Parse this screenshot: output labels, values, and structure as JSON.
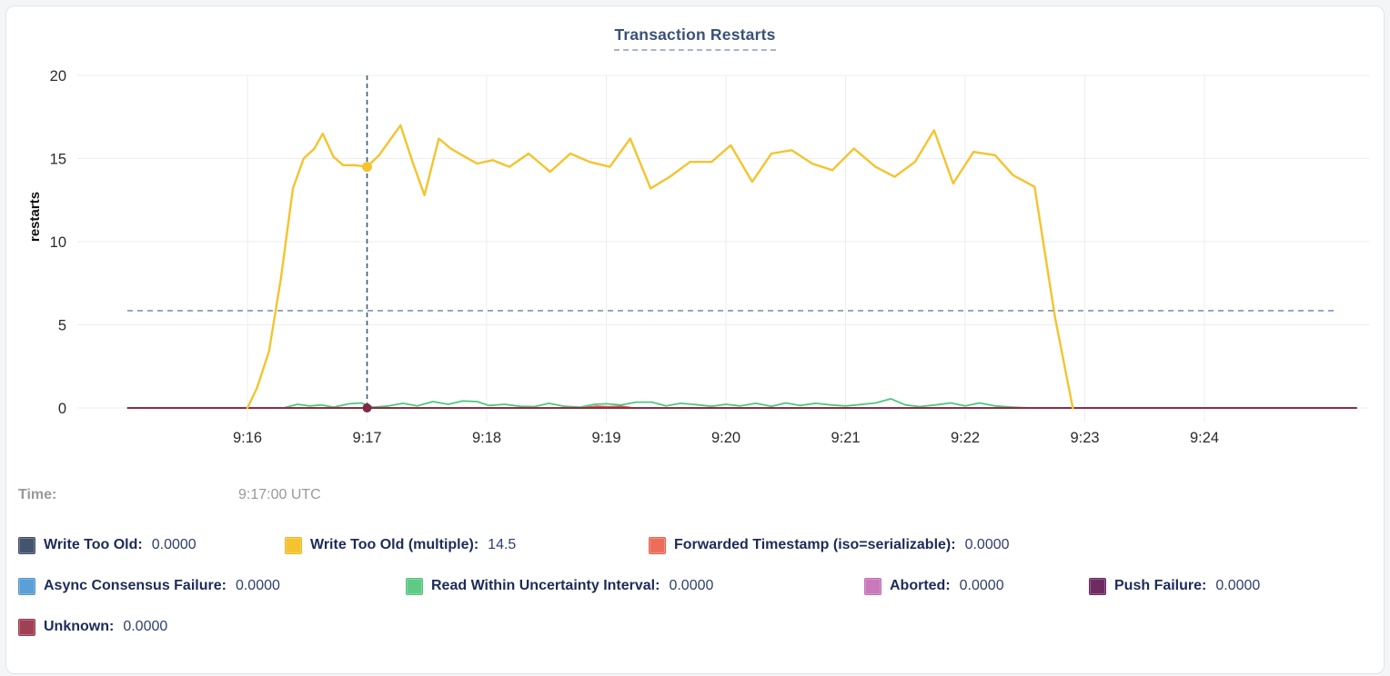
{
  "title": "Transaction Restarts",
  "y_axis_label": "restarts",
  "time_row": {
    "label": "Time:",
    "value": "9:17:00 UTC"
  },
  "legend": [
    {
      "label": "Write Too Old:",
      "value": "0.0000",
      "color": "#44546e"
    },
    {
      "label": "Write Too Old (multiple):",
      "value": "14.5",
      "color": "#f5c32e"
    },
    {
      "label": "Forwarded Timestamp (iso=serializable):",
      "value": "0.0000",
      "color": "#ec6e5a"
    },
    {
      "label": "Async Consensus Failure:",
      "value": "0.0000",
      "color": "#5a9fd6"
    },
    {
      "label": "Read Within Uncertainty Interval:",
      "value": "0.0000",
      "color": "#5ecb84"
    },
    {
      "label": "Aborted:",
      "value": "0.0000",
      "color": "#ca77bb"
    },
    {
      "label": "Push Failure:",
      "value": "0.0000",
      "color": "#6e2b62"
    },
    {
      "label": "Unknown:",
      "value": "0.0000",
      "color": "#a04055"
    }
  ],
  "chart_data": {
    "type": "line",
    "title": "Transaction Restarts",
    "xlabel": "",
    "ylabel": "restarts",
    "ylim": [
      0,
      20
    ],
    "y_ticks": [
      0,
      5,
      10,
      15,
      20
    ],
    "x_tick_labels": [
      "9:16",
      "9:17",
      "9:18",
      "9:19",
      "9:20",
      "9:21",
      "9:22",
      "9:23",
      "9:24"
    ],
    "x_tick_minutes": [
      16,
      17,
      18,
      19,
      20,
      21,
      22,
      23,
      24
    ],
    "x_domain_minutes": [
      15.0,
      25.27
    ],
    "grid": true,
    "legend_position": "bottom",
    "hover": {
      "time_label": "9:17:00 UTC",
      "time_minute": 17,
      "highlight_series": "Write Too Old (multiple)",
      "highlight_value": 14.5,
      "baseline_dot_value": 0,
      "hline_value": 5.85,
      "vline_color": "#3c5a76",
      "hline_color": "#7d95ae",
      "dot_color_top": "#f5c32e",
      "dot_color_bottom": "#7d2b44"
    },
    "series": [
      {
        "name": "Write Too Old",
        "color": "#44546e",
        "width": 1.5,
        "points": [
          [
            15.0,
            0
          ],
          [
            25.27,
            0
          ]
        ]
      },
      {
        "name": "Forwarded Timestamp (iso=serializable)",
        "color": "#e2574d",
        "width": 2,
        "points": [
          [
            16.0,
            0
          ],
          [
            18.8,
            0
          ],
          [
            18.92,
            0.1
          ],
          [
            19.02,
            0.06
          ],
          [
            19.12,
            0.1
          ],
          [
            19.22,
            0
          ],
          [
            22.9,
            0
          ]
        ]
      },
      {
        "name": "Async Consensus Failure",
        "color": "#5a9fd6",
        "width": 1.5,
        "points": [
          [
            15.0,
            0
          ],
          [
            25.27,
            0
          ]
        ]
      },
      {
        "name": "Aborted",
        "color": "#ca77bb",
        "width": 1.5,
        "points": [
          [
            15.0,
            0
          ],
          [
            25.27,
            0
          ]
        ]
      },
      {
        "name": "Push Failure",
        "color": "#6e2b62",
        "width": 1.5,
        "points": [
          [
            15.0,
            0
          ],
          [
            25.27,
            0
          ]
        ]
      },
      {
        "name": "Read Within Uncertainty Interval",
        "color": "#4fc87f",
        "width": 1.8,
        "points": [
          [
            16.3,
            0
          ],
          [
            16.42,
            0.22
          ],
          [
            16.52,
            0.12
          ],
          [
            16.62,
            0.18
          ],
          [
            16.72,
            0.05
          ],
          [
            16.85,
            0.25
          ],
          [
            16.95,
            0.3
          ],
          [
            17.05,
            0.05
          ],
          [
            17.18,
            0.12
          ],
          [
            17.3,
            0.28
          ],
          [
            17.42,
            0.12
          ],
          [
            17.55,
            0.38
          ],
          [
            17.68,
            0.22
          ],
          [
            17.8,
            0.42
          ],
          [
            17.92,
            0.38
          ],
          [
            18.02,
            0.15
          ],
          [
            18.15,
            0.22
          ],
          [
            18.28,
            0.1
          ],
          [
            18.4,
            0.08
          ],
          [
            18.52,
            0.28
          ],
          [
            18.65,
            0.1
          ],
          [
            18.78,
            0.05
          ],
          [
            18.9,
            0.22
          ],
          [
            19.0,
            0.25
          ],
          [
            19.12,
            0.18
          ],
          [
            19.25,
            0.35
          ],
          [
            19.38,
            0.35
          ],
          [
            19.5,
            0.12
          ],
          [
            19.62,
            0.28
          ],
          [
            19.75,
            0.2
          ],
          [
            19.88,
            0.1
          ],
          [
            20.0,
            0.22
          ],
          [
            20.12,
            0.12
          ],
          [
            20.25,
            0.28
          ],
          [
            20.38,
            0.1
          ],
          [
            20.5,
            0.3
          ],
          [
            20.62,
            0.15
          ],
          [
            20.75,
            0.28
          ],
          [
            20.88,
            0.18
          ],
          [
            21.0,
            0.12
          ],
          [
            21.12,
            0.2
          ],
          [
            21.25,
            0.3
          ],
          [
            21.38,
            0.55
          ],
          [
            21.5,
            0.18
          ],
          [
            21.62,
            0.08
          ],
          [
            21.75,
            0.18
          ],
          [
            21.88,
            0.3
          ],
          [
            22.0,
            0.12
          ],
          [
            22.12,
            0.3
          ],
          [
            22.25,
            0.12
          ],
          [
            22.4,
            0.05
          ],
          [
            22.55,
            0
          ]
        ]
      },
      {
        "name": "Unknown",
        "color": "#8d2e42",
        "width": 2,
        "points": [
          [
            15.0,
            0
          ],
          [
            25.27,
            0
          ]
        ]
      },
      {
        "name": "Write Too Old (multiple)",
        "color": "#f5c32e",
        "width": 2.4,
        "points": [
          [
            16.0,
            0
          ],
          [
            16.08,
            1.2
          ],
          [
            16.18,
            3.4
          ],
          [
            16.28,
            7.8
          ],
          [
            16.38,
            13.2
          ],
          [
            16.47,
            15.0
          ],
          [
            16.56,
            15.6
          ],
          [
            16.63,
            16.5
          ],
          [
            16.72,
            15.1
          ],
          [
            16.8,
            14.6
          ],
          [
            16.9,
            14.6
          ],
          [
            17.0,
            14.5
          ],
          [
            17.1,
            15.2
          ],
          [
            17.2,
            16.2
          ],
          [
            17.28,
            17.0
          ],
          [
            17.38,
            14.8
          ],
          [
            17.48,
            12.8
          ],
          [
            17.6,
            16.2
          ],
          [
            17.7,
            15.6
          ],
          [
            17.82,
            15.1
          ],
          [
            17.92,
            14.7
          ],
          [
            18.05,
            14.9
          ],
          [
            18.19,
            14.5
          ],
          [
            18.35,
            15.3
          ],
          [
            18.53,
            14.2
          ],
          [
            18.7,
            15.3
          ],
          [
            18.86,
            14.8
          ],
          [
            19.03,
            14.5
          ],
          [
            19.2,
            16.2
          ],
          [
            19.37,
            13.2
          ],
          [
            19.53,
            13.9
          ],
          [
            19.7,
            14.8
          ],
          [
            19.88,
            14.8
          ],
          [
            20.04,
            15.8
          ],
          [
            20.22,
            13.6
          ],
          [
            20.38,
            15.3
          ],
          [
            20.55,
            15.5
          ],
          [
            20.72,
            14.7
          ],
          [
            20.89,
            14.3
          ],
          [
            21.07,
            15.6
          ],
          [
            21.25,
            14.5
          ],
          [
            21.41,
            13.9
          ],
          [
            21.58,
            14.8
          ],
          [
            21.74,
            16.7
          ],
          [
            21.9,
            13.5
          ],
          [
            22.07,
            15.4
          ],
          [
            22.25,
            15.2
          ],
          [
            22.4,
            14.0
          ],
          [
            22.58,
            13.3
          ],
          [
            22.75,
            5.5
          ],
          [
            22.9,
            0
          ]
        ]
      }
    ]
  }
}
